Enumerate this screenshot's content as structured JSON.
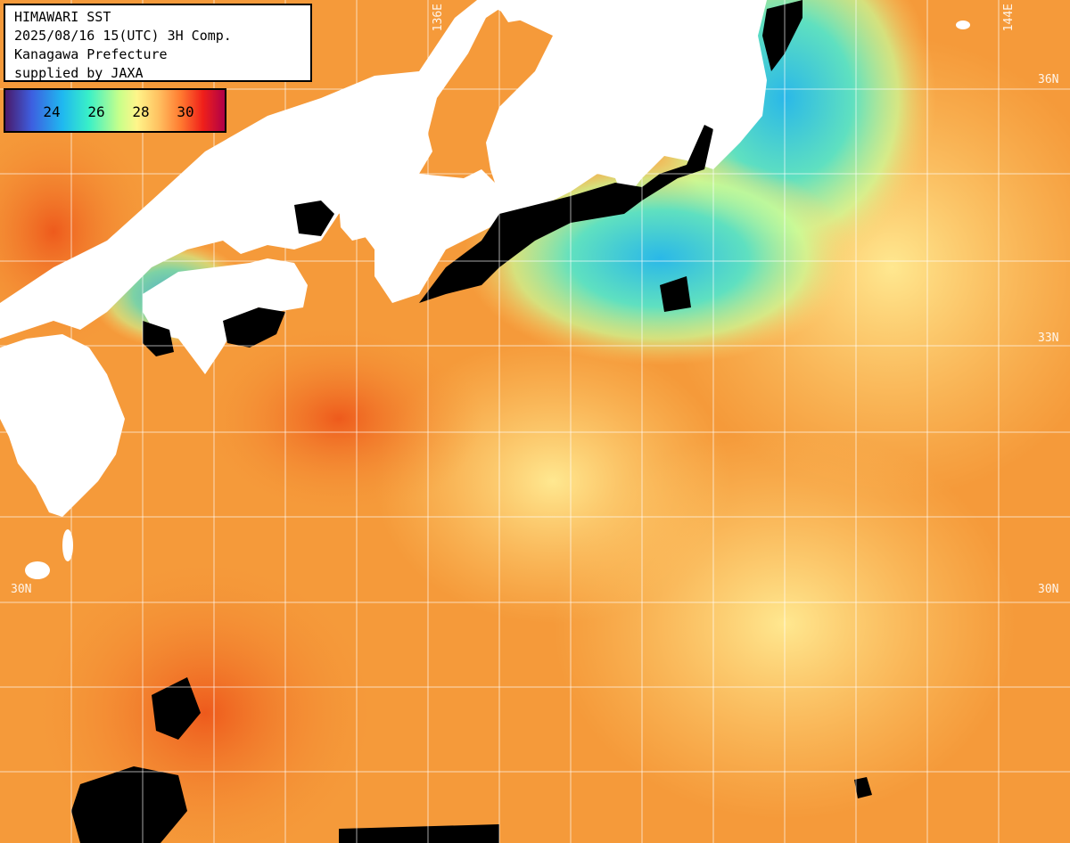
{
  "title": {
    "line1": "HIMAWARI SST",
    "line2": "2025/08/16 15(UTC) 3H Comp.",
    "line3": "Kanagawa Prefecture",
    "line4": "supplied by JAXA"
  },
  "color_scale": {
    "ticks": [
      "24",
      "26",
      "28",
      "30"
    ],
    "colors": [
      "#4a1a6a",
      "#3d5fe0",
      "#1fb8f0",
      "#39f0c8",
      "#c8ff8a",
      "#fff58a",
      "#ffc060",
      "#ff7a30",
      "#f0201a",
      "#b00048"
    ]
  },
  "grid_labels": {
    "lon_136": "136E",
    "lon_144": "144E",
    "lat_36": "36N",
    "lat_33": "33N",
    "lat_30_left": "30N",
    "lat_30_right": "30N"
  },
  "colors": {
    "land": "#ffffff",
    "no_data": "#000000",
    "ocean_warm": "#f59a3a",
    "ocean_hot": "#f06a22",
    "ocean_mild": "#ffd070",
    "ocean_cool": "#7af0a8",
    "ocean_cold": "#2ab8e8"
  }
}
